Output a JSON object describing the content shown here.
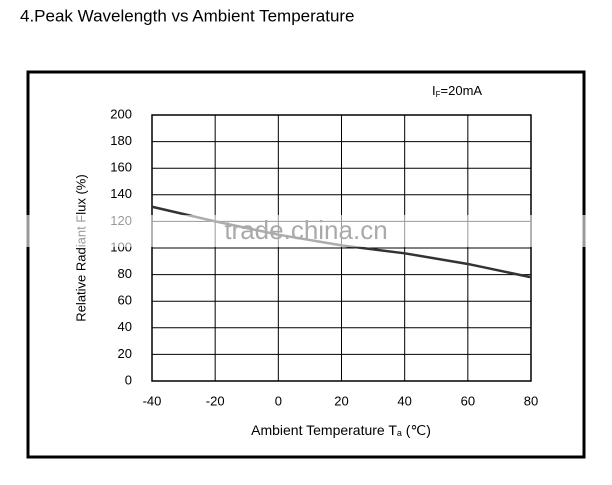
{
  "chart_data": {
    "type": "line",
    "title": "4.Peak Wavelength vs Ambient Temperature",
    "annotation": {
      "main": "I",
      "sub": "F",
      "tail": "=20mA"
    },
    "x_label": {
      "main": "Ambient Temperature T",
      "sub": "a",
      "tail": " (℃)"
    },
    "y_label": "Relative Radiant Flux (%)",
    "watermark": "trade.china.cn",
    "x": [
      -40,
      -20,
      0,
      20,
      40,
      60,
      80
    ],
    "values": [
      131,
      120,
      110,
      102,
      96,
      88,
      78
    ],
    "color": "#333333",
    "xlim": [
      -40,
      80
    ],
    "xticks": [
      -40,
      -20,
      0,
      20,
      40,
      60,
      80
    ],
    "ylim": [
      0,
      200
    ],
    "yticks": [
      0,
      20,
      40,
      60,
      80,
      100,
      120,
      140,
      160,
      180,
      200
    ],
    "grid": true
  }
}
